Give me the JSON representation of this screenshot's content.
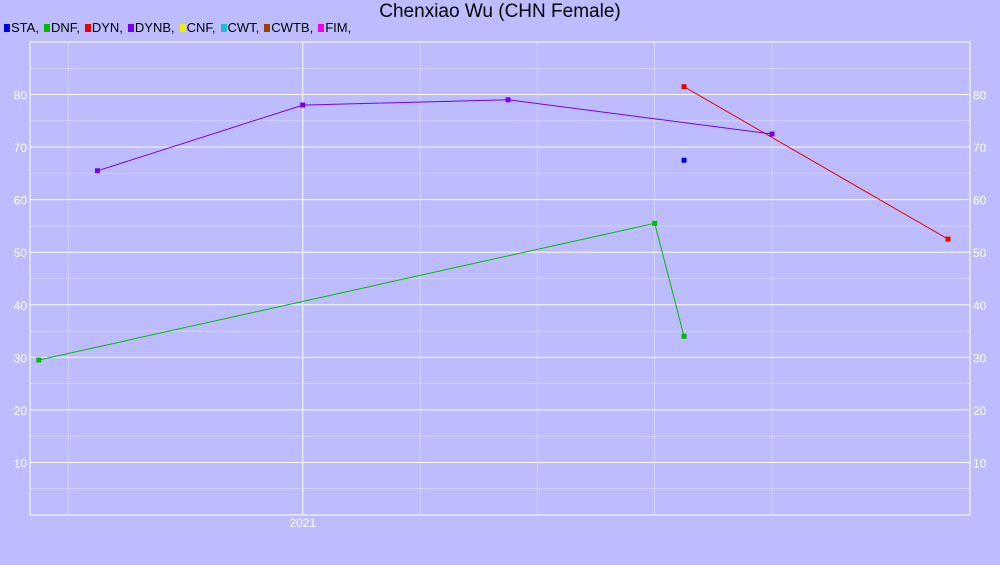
{
  "chart_data": {
    "type": "line",
    "title": "Chenxiao Wu (CHN Female)",
    "xlabel": "",
    "ylabel": "",
    "x_tick_labels": [
      "2021"
    ],
    "ylim": [
      0,
      90
    ],
    "y_ticks": [
      10,
      20,
      30,
      40,
      50,
      60,
      70,
      80
    ],
    "grid": true,
    "legend_position": "top-left",
    "series": [
      {
        "name": "STA",
        "color": "#0000dd",
        "points": [
          {
            "x": "2022-01",
            "y": 67.5
          }
        ]
      },
      {
        "name": "DNF",
        "color": "#00bb00",
        "points": [
          {
            "x": "2020-03",
            "y": 29.5
          },
          {
            "x": "2021-12",
            "y": 55.5
          },
          {
            "x": "2022-01",
            "y": 34
          }
        ]
      },
      {
        "name": "DYN",
        "color": "#ee0000",
        "points": [
          {
            "x": "2022-01",
            "y": 81.5
          },
          {
            "x": "2022-10",
            "y": 52.5
          }
        ]
      },
      {
        "name": "DYNB",
        "color": "#7700ee",
        "points": [
          {
            "x": "2020-05",
            "y": 65.5
          },
          {
            "x": "2020-12",
            "y": 78
          },
          {
            "x": "2021-07",
            "y": 79
          },
          {
            "x": "2022-04",
            "y": 72.5
          }
        ]
      },
      {
        "name": "CNF",
        "color": "#eeee00",
        "points": []
      },
      {
        "name": "CWT",
        "color": "#22bbcc",
        "points": []
      },
      {
        "name": "CWTB",
        "color": "#994400",
        "points": []
      },
      {
        "name": "FIM",
        "color": "#ee00ee",
        "points": []
      }
    ]
  }
}
